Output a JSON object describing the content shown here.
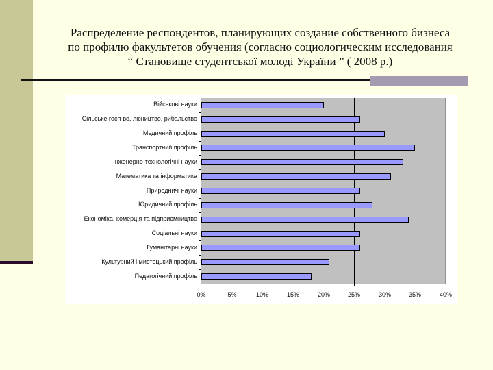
{
  "slide": {
    "title_lines": [
      "Распределение респондентов, планирующих создание собственного бизнеса",
      "по профилю факультетов обучения (согласно социологическим исследования",
      "“ Становище студентської молоді України ” ( 2008 р.)"
    ],
    "colors": {
      "background": "#FFFFE6",
      "side_band": "#C8C896",
      "title_band": "#A49BB0",
      "plot_background": "#C0C0C0",
      "bar_fill": "#9999FF"
    }
  },
  "chart_data": {
    "type": "bar",
    "orientation": "horizontal",
    "title": "Распределение респондентов, планирующих создание собственного бизнеса по профилю факультетов обучения (согласно социологическим исследования “ Становище студентської молоді України ” ( 2008 р.)",
    "xlabel": "",
    "ylabel": "",
    "categories": [
      "Військові науки",
      "Сільське госп-во, лісництво, рибальство",
      "Медичний профіль",
      "Транспортний профіль",
      "Інженерно-технологічні науки",
      "Математика та інформатика",
      "Природничі науки",
      "Юридичний профіль",
      "Економіка, комерція та підприємництво",
      "Соціальні науки",
      "Гуманітарні науки",
      "Культурний і мистецький профіль",
      "Педагогічний профіль"
    ],
    "values": [
      20,
      26,
      30,
      35,
      33,
      31,
      26,
      28,
      34,
      26,
      26,
      21,
      18
    ],
    "unit": "%",
    "xlim": [
      0,
      40
    ],
    "xticks": [
      "0%",
      "5%",
      "10%",
      "15%",
      "20%",
      "25%",
      "30%",
      "35%",
      "40%"
    ],
    "reference_line": 25,
    "grid": false,
    "legend": null
  }
}
